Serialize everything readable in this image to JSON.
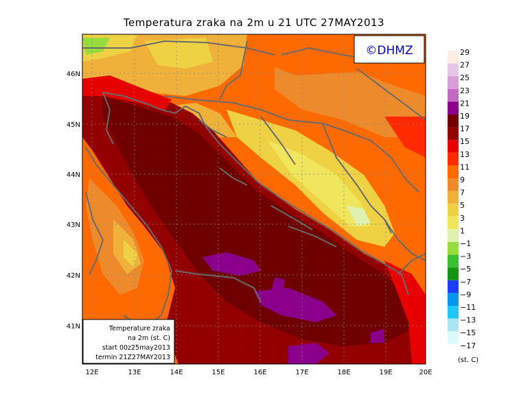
{
  "title": "Temperatura zraka na 2m u 21 UTC 27MAY2013",
  "copyright": "©DHMZ",
  "map": {
    "lat_labels": [
      "46N",
      "45N",
      "44N",
      "43N",
      "42N",
      "41N"
    ],
    "lon_labels": [
      "12E",
      "13E",
      "14E",
      "15E",
      "16E",
      "17E",
      "18E",
      "19E",
      "20E"
    ]
  },
  "info_box": {
    "line1": "Temperature zraka",
    "line2": "na 2m (st. C)",
    "line3": "start 00z25may2013",
    "line4": "termin 21Z27MAY2013"
  },
  "legend": {
    "unit": "(st. C)",
    "labels": [
      "29",
      "27",
      "25",
      "23",
      "21",
      "19",
      "17",
      "15",
      "13",
      "11",
      "9",
      "7",
      "5",
      "3",
      "1",
      "−1",
      "−3",
      "−5",
      "−7",
      "−9",
      "−11",
      "−13",
      "−15",
      "−17"
    ],
    "colors": [
      "#fdeee4",
      "#e6c6e6",
      "#d79ed7",
      "#c06bc0",
      "#8a008a",
      "#6e0000",
      "#930000",
      "#e60000",
      "#ff2a00",
      "#ff6a00",
      "#ec8a2c",
      "#f0b13b",
      "#efd244",
      "#f0e65e",
      "#e0f0b0",
      "#96dc3c",
      "#3cbe32",
      "#149614",
      "#1e3cff",
      "#0096f0",
      "#1ec8f0",
      "#aae6f0",
      "#dcfafa",
      "#ffffff"
    ]
  }
}
